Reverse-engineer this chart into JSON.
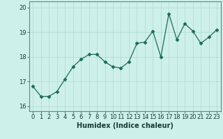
{
  "x": [
    0,
    1,
    2,
    3,
    4,
    5,
    6,
    7,
    8,
    9,
    10,
    11,
    12,
    13,
    14,
    15,
    16,
    17,
    18,
    19,
    20,
    21,
    22,
    23
  ],
  "y": [
    16.8,
    16.4,
    16.4,
    16.6,
    17.1,
    17.6,
    17.9,
    18.1,
    18.1,
    17.8,
    17.6,
    17.55,
    17.8,
    18.55,
    18.6,
    19.05,
    18.0,
    19.75,
    18.7,
    19.35,
    19.05,
    18.55,
    18.8,
    19.1
  ],
  "line_color": "#1a6b5a",
  "marker": "D",
  "marker_size": 2.5,
  "bg_color": "#cef0ea",
  "grid_color": "#b0d8ce",
  "xlabel": "Humidex (Indice chaleur)",
  "ylim": [
    15.8,
    20.25
  ],
  "xlim": [
    -0.5,
    23.5
  ],
  "yticks": [
    16,
    17,
    18,
    19,
    20
  ],
  "xticks": [
    0,
    1,
    2,
    3,
    4,
    5,
    6,
    7,
    8,
    9,
    10,
    11,
    12,
    13,
    14,
    15,
    16,
    17,
    18,
    19,
    20,
    21,
    22,
    23
  ],
  "label_fontsize": 7,
  "tick_fontsize": 6
}
